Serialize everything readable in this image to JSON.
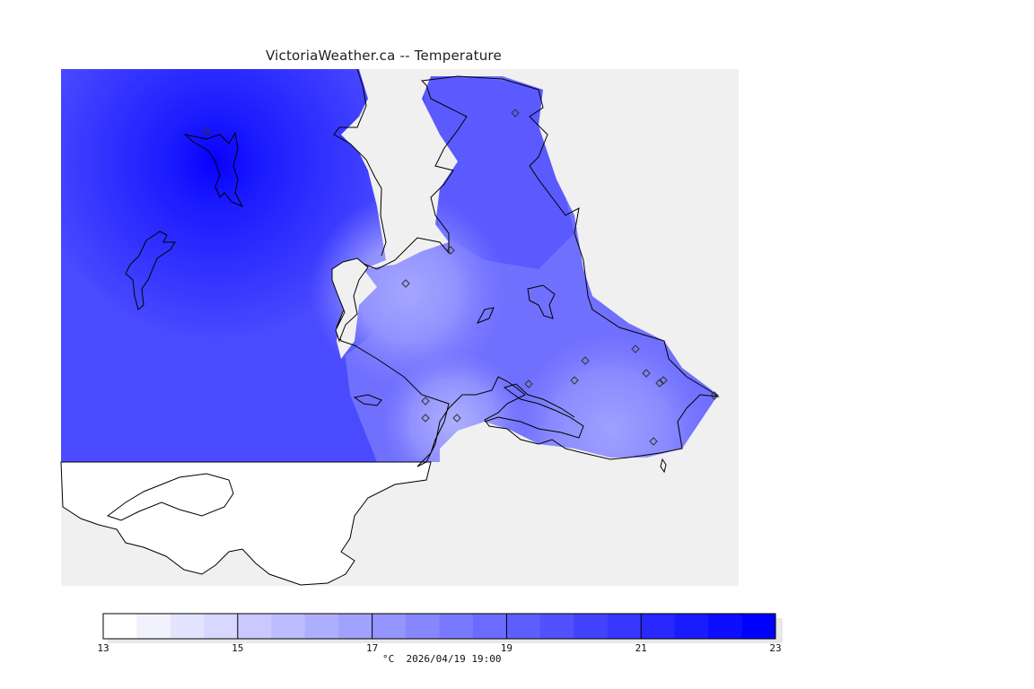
{
  "header": {
    "title": "VictoriaWeather.ca -- Temperature"
  },
  "legend": {
    "unit": "°C",
    "timestamp": "2026/04/19 19:00",
    "min": 13,
    "max": 23,
    "ticks": [
      "13",
      "15",
      "17",
      "19",
      "21",
      "23"
    ],
    "bins": 20,
    "color_low": "#ffffff",
    "color_high": "#0000ff"
  },
  "map": {
    "field_colors": {
      "deep": "#0a00ff",
      "strong": "#2222ff",
      "mid": "#4c4cff",
      "light": "#7a7aff",
      "pale": "#9c9cff",
      "no_data": "#f0f0f0",
      "land_outside": "#ffffff"
    },
    "station_marker_icon": "diamond-icon"
  }
}
